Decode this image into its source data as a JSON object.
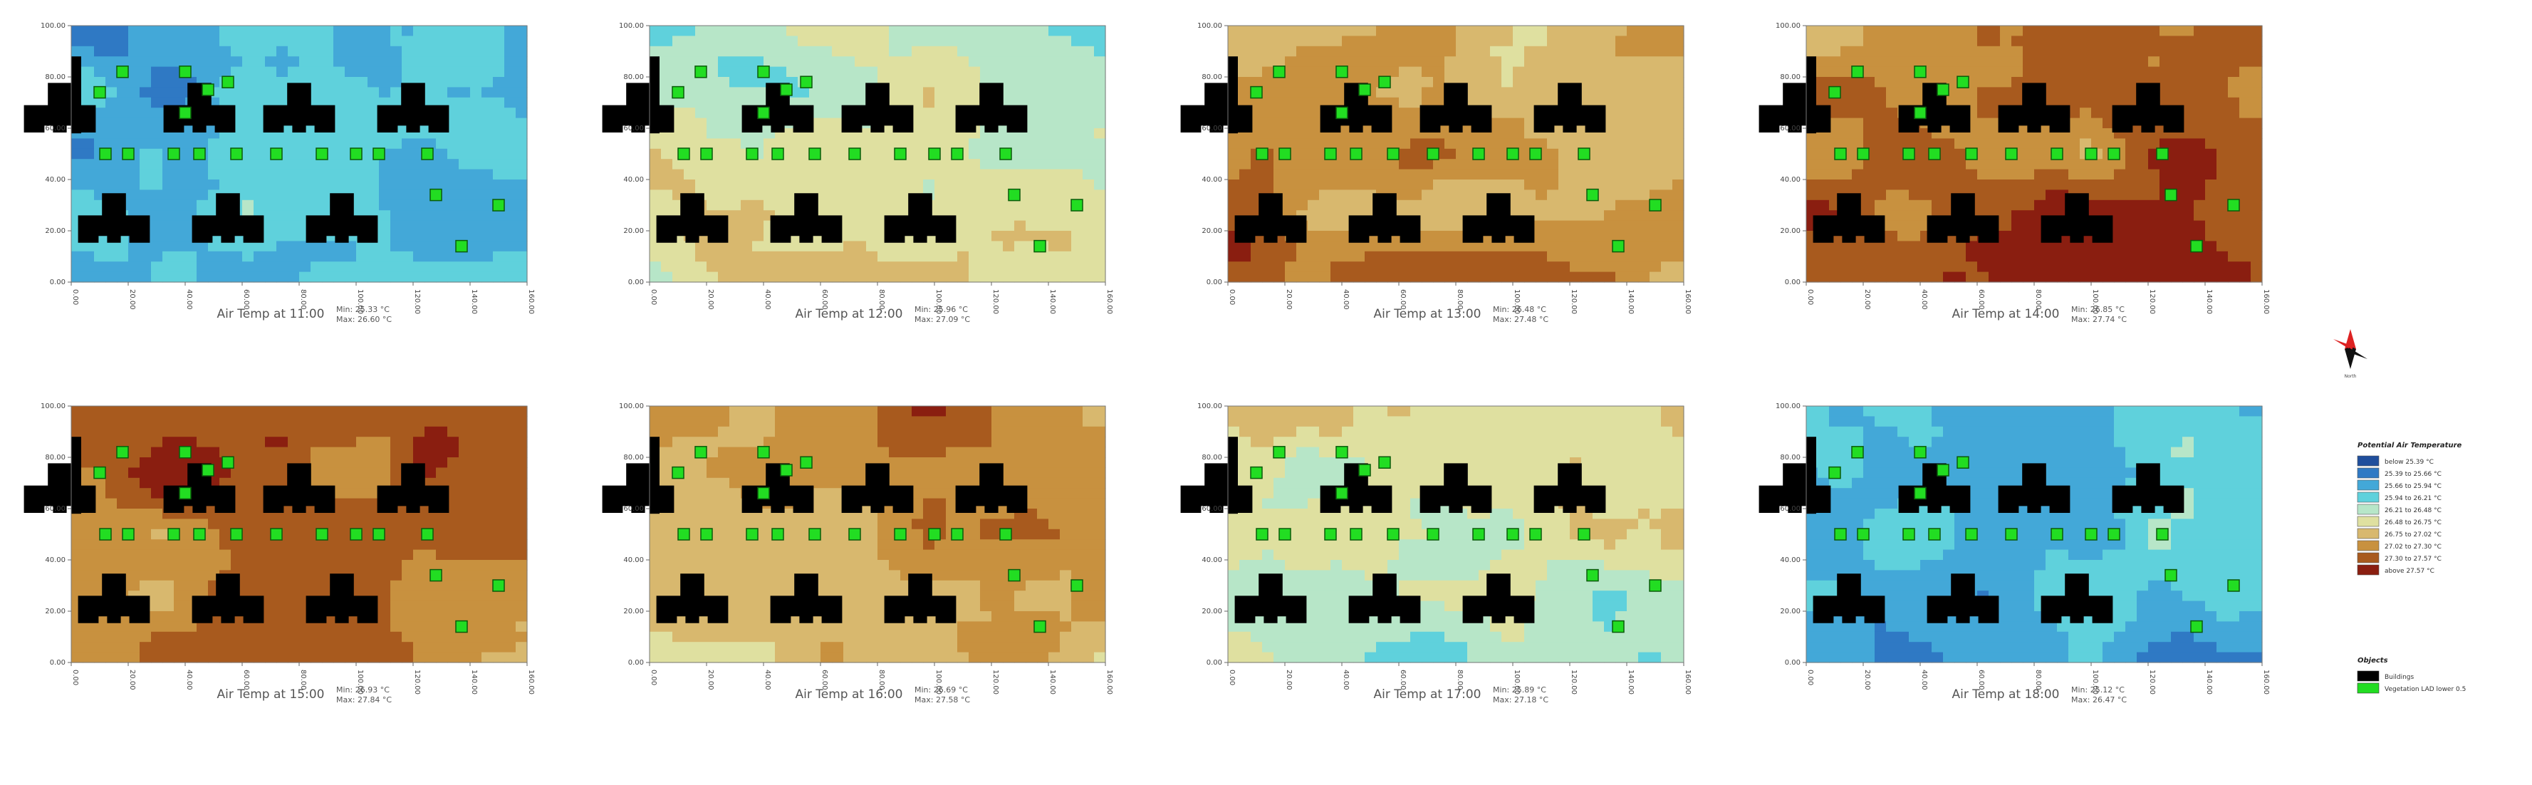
{
  "chart_data": [
    {
      "type": "heatmap",
      "title": "Air Temp at 11:00",
      "min": "Min: 25.33 °C",
      "max": "Max: 26.60 °C",
      "level": 2
    },
    {
      "type": "heatmap",
      "title": "Air Temp at 12:00",
      "min": "Min: 25.96 °C",
      "max": "Max: 27.09 °C",
      "level": 4
    },
    {
      "type": "heatmap",
      "title": "Air Temp at 13:00",
      "min": "Min: 26.48 °C",
      "max": "Max: 27.48 °C",
      "level": 6
    },
    {
      "type": "heatmap",
      "title": "Air Temp at 14:00",
      "min": "Min: 26.85 °C",
      "max": "Max: 27.74 °C",
      "level": 7
    },
    {
      "type": "heatmap",
      "title": "Air Temp at 15:00",
      "min": "Min: 26.93 °C",
      "max": "Max: 27.84 °C",
      "level": 7
    },
    {
      "type": "heatmap",
      "title": "Air Temp at 16:00",
      "min": "Min: 26.69 °C",
      "max": "Max: 27.58 °C",
      "level": 6
    },
    {
      "type": "heatmap",
      "title": "Air Temp at 17:00",
      "min": "Min: 25.89 °C",
      "max": "Max: 27.18 °C",
      "level": 4
    },
    {
      "type": "heatmap",
      "title": "Air Temp at 18:00",
      "min": "Min: 25.12 °C",
      "max": "Max: 26.47 °C",
      "level": 2
    }
  ],
  "axes": {
    "x_ticks": [
      "0.00",
      "20.00",
      "40.00",
      "60.00",
      "80.00",
      "100.00",
      "120.00",
      "140.00",
      "160.00"
    ],
    "y_ticks": [
      "0.00",
      "20.00",
      "40.00",
      "60.00",
      "80.00",
      "100.00"
    ],
    "xlim": [
      0,
      160
    ],
    "ylim": [
      0,
      100
    ]
  },
  "legend": {
    "title": "Potential Air Temperature",
    "items": [
      {
        "label": "below 25.39 °C",
        "color": "#1f4e9c"
      },
      {
        "label": "25.39 to 25.66 °C",
        "color": "#2f79c4"
      },
      {
        "label": "25.66 to 25.94 °C",
        "color": "#43a8d8"
      },
      {
        "label": "25.94 to 26.21 °C",
        "color": "#5fd1dc"
      },
      {
        "label": "26.21 to 26.48 °C",
        "color": "#b7e6c8"
      },
      {
        "label": "26.48 to 26.75 °C",
        "color": "#dfe0a0"
      },
      {
        "label": "26.75 to 27.02 °C",
        "color": "#d8b86e"
      },
      {
        "label": "27.02 to 27.30 °C",
        "color": "#c8913f"
      },
      {
        "label": "27.30 to 27.57 °C",
        "color": "#a85a1e"
      },
      {
        "label": "above 27.57 °C",
        "color": "#8a1e10"
      }
    ],
    "objects_title": "Objects",
    "objects": [
      {
        "label": "Buildings",
        "color": "#000000"
      },
      {
        "label": "Vegetation LAD lower 0.5",
        "color": "#22dd22"
      }
    ]
  },
  "compass_label": "North"
}
